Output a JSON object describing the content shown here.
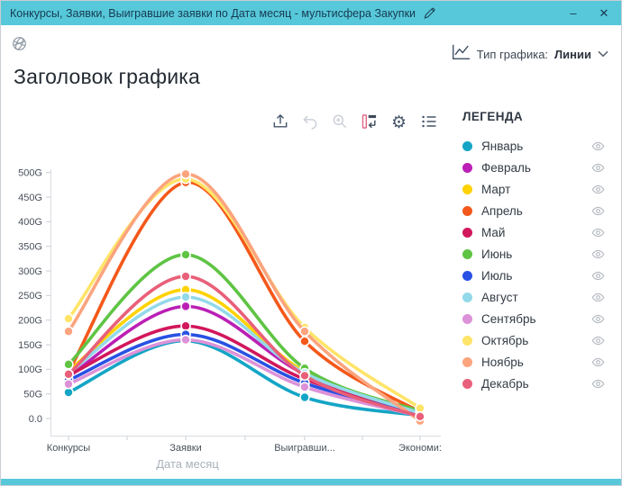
{
  "window": {
    "title": "Конкурсы, Заявки, Выигравшие заявки по Дата месяц - мультисфера Закупки",
    "minimize_icon": "–",
    "close_icon": "✕"
  },
  "header": {
    "chart_type_label": "Тип графика:",
    "chart_type_value": "Линии"
  },
  "page_title": "Заголовок графика",
  "toolbar": {
    "settings_glyph": "⚙",
    "icons": [
      "export-icon",
      "undo-icon",
      "zoom-icon",
      "pivot-icon",
      "settings-icon",
      "list-icon"
    ]
  },
  "legend": {
    "title": "ЛЕГЕНДА"
  },
  "colors": {
    "titlebar_accent": "#57c8da",
    "axis": "#d9dde2"
  },
  "chart_data": {
    "type": "line",
    "title": "Заголовок графика",
    "xlabel": "Дата месяц",
    "unit": "G",
    "legend_position": "right",
    "categories": [
      "Конкурсы",
      "Заявки",
      "Выигравши...",
      "Экономи:"
    ],
    "ylim": [
      -15,
      510
    ],
    "y_ticks": [
      {
        "label": "500G",
        "value": 500
      },
      {
        "label": "450G",
        "value": 450
      },
      {
        "label": "400G",
        "value": 400
      },
      {
        "label": "350G",
        "value": 350
      },
      {
        "label": "300G",
        "value": 300
      },
      {
        "label": "250G",
        "value": 250
      },
      {
        "label": "200G",
        "value": 200
      },
      {
        "label": "150G",
        "value": 150
      },
      {
        "label": "100G",
        "value": 100
      },
      {
        "label": "50G",
        "value": 50
      },
      {
        "label": "0.0",
        "value": 0
      }
    ],
    "series": [
      {
        "name": "Январь",
        "color": "#14a5c6",
        "values": [
          53,
          158,
          43,
          6
        ]
      },
      {
        "name": "Февраль",
        "color": "#bb1fb5",
        "values": [
          85,
          228,
          90,
          10
        ]
      },
      {
        "name": "Март",
        "color": "#ffd200",
        "values": [
          97,
          262,
          95,
          12
        ]
      },
      {
        "name": "Апрель",
        "color": "#f4581a",
        "values": [
          95,
          480,
          157,
          13
        ]
      },
      {
        "name": "Май",
        "color": "#d2175c",
        "values": [
          88,
          188,
          80,
          9
        ]
      },
      {
        "name": "Июнь",
        "color": "#5fc444",
        "values": [
          110,
          333,
          102,
          15
        ]
      },
      {
        "name": "Июль",
        "color": "#2951e3",
        "values": [
          78,
          171,
          72,
          7
        ]
      },
      {
        "name": "Август",
        "color": "#93d9ea",
        "values": [
          92,
          247,
          92,
          11
        ]
      },
      {
        "name": "Сентябрь",
        "color": "#dc92d8",
        "values": [
          70,
          160,
          64,
          5
        ]
      },
      {
        "name": "Октябрь",
        "color": "#ffe469",
        "values": [
          203,
          487,
          185,
          21
        ]
      },
      {
        "name": "Ноябрь",
        "color": "#fba47e",
        "values": [
          177,
          497,
          177,
          -5
        ]
      },
      {
        "name": "Декабрь",
        "color": "#e95f79",
        "values": [
          90,
          289,
          87,
          4
        ]
      }
    ]
  }
}
